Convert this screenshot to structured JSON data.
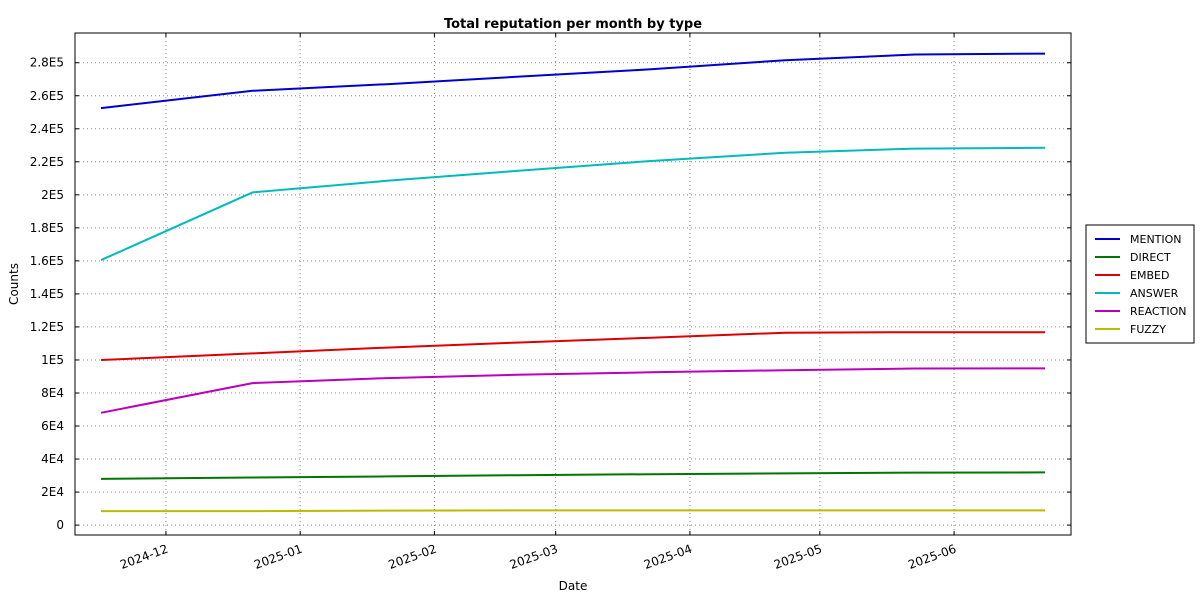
{
  "chart_data": {
    "type": "line",
    "title": "Total reputation per month by type",
    "xlabel": "Date",
    "ylabel": "Counts",
    "x": [
      "2024-11-16",
      "2024-12-21",
      "2025-01-21",
      "2025-02-20",
      "2025-03-23",
      "2025-04-23",
      "2025-05-23",
      "2025-06-22"
    ],
    "xlim": [
      "2024-11-10",
      "2025-06-28"
    ],
    "ylim": [
      -6000,
      298000
    ],
    "x_ticks": [
      {
        "date": "2024-12-01",
        "label": "2024-12"
      },
      {
        "date": "2025-01-01",
        "label": "2025-01"
      },
      {
        "date": "2025-02-01",
        "label": "2025-02"
      },
      {
        "date": "2025-03-01",
        "label": "2025-03"
      },
      {
        "date": "2025-04-01",
        "label": "2025-04"
      },
      {
        "date": "2025-05-01",
        "label": "2025-05"
      },
      {
        "date": "2025-06-01",
        "label": "2025-06"
      }
    ],
    "y_ticks": [
      {
        "value": 0,
        "label": "0"
      },
      {
        "value": 20000,
        "label": "2E4"
      },
      {
        "value": 40000,
        "label": "4E4"
      },
      {
        "value": 60000,
        "label": "6E4"
      },
      {
        "value": 80000,
        "label": "8E4"
      },
      {
        "value": 100000,
        "label": "1E5"
      },
      {
        "value": 120000,
        "label": "1.2E5"
      },
      {
        "value": 140000,
        "label": "1.4E5"
      },
      {
        "value": 160000,
        "label": "1.6E5"
      },
      {
        "value": 180000,
        "label": "1.8E5"
      },
      {
        "value": 200000,
        "label": "2E5"
      },
      {
        "value": 220000,
        "label": "2.2E5"
      },
      {
        "value": 240000,
        "label": "2.4E5"
      },
      {
        "value": 260000,
        "label": "2.6E5"
      },
      {
        "value": 280000,
        "label": "2.8E5"
      }
    ],
    "grid": true,
    "legend_position": "right",
    "series": [
      {
        "name": "MENTION",
        "color": "#0000cc",
        "values": [
          252500,
          263000,
          267000,
          271500,
          276000,
          281500,
          285000,
          285500
        ]
      },
      {
        "name": "DIRECT",
        "color": "#007700",
        "values": [
          28000,
          28800,
          29500,
          30200,
          30800,
          31300,
          31800,
          31900
        ]
      },
      {
        "name": "EMBED",
        "color": "#dd0000",
        "values": [
          100000,
          104000,
          107500,
          110500,
          113500,
          116500,
          116800,
          116800
        ]
      },
      {
        "name": "ANSWER",
        "color": "#00bbbb",
        "values": [
          160500,
          201500,
          208500,
          214500,
          220500,
          225500,
          228000,
          228500
        ]
      },
      {
        "name": "REACTION",
        "color": "#bb00bb",
        "values": [
          68000,
          86000,
          89000,
          91000,
          92500,
          93800,
          94800,
          94900
        ]
      },
      {
        "name": "FUZZY",
        "color": "#bbbb00",
        "values": [
          8500,
          8500,
          8800,
          8900,
          8900,
          8900,
          8900,
          8900
        ]
      }
    ]
  }
}
